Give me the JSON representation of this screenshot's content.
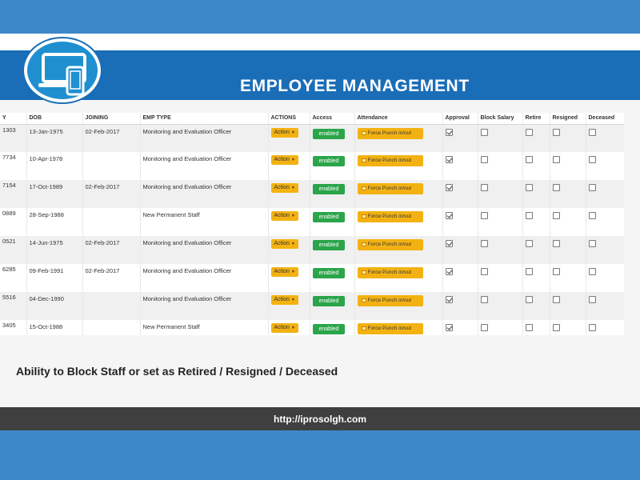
{
  "header": {
    "title": "EMPLOYEE MANAGEMENT"
  },
  "table": {
    "columns": [
      "Y",
      "DOB",
      "JOINING",
      "EMP TYPE",
      "ACTIONS",
      "Access",
      "Attendance",
      "Approval",
      "Block Salary",
      "Retire",
      "Resigned",
      "Deceased"
    ],
    "action_label": "Action",
    "access_label": "enabled",
    "punch_label": "Force Punch in/out",
    "rows": [
      {
        "id": "1303",
        "dob": "13-Jan-1975",
        "joining": "02-Feb-2017",
        "emp_type": "Monitoring and Evaluation Officer",
        "approval": true,
        "block_salary": false,
        "retire": false,
        "resigned": false,
        "deceased": false
      },
      {
        "id": "7734",
        "dob": "10-Apr-1978",
        "joining": "",
        "emp_type": "Monitoring and Evaluation Officer",
        "approval": true,
        "block_salary": false,
        "retire": false,
        "resigned": false,
        "deceased": false
      },
      {
        "id": "7154",
        "dob": "17-Oct-1989",
        "joining": "02-Feb-2017",
        "emp_type": "Monitoring and Evaluation Officer",
        "approval": true,
        "block_salary": false,
        "retire": false,
        "resigned": false,
        "deceased": false
      },
      {
        "id": "0889",
        "dob": "28-Sep-1988",
        "joining": "",
        "emp_type": "New Permanent Staff",
        "approval": true,
        "block_salary": false,
        "retire": false,
        "resigned": false,
        "deceased": false
      },
      {
        "id": "0521",
        "dob": "14-Jun-1975",
        "joining": "02-Feb-2017",
        "emp_type": "Monitoring and Evaluation Officer",
        "approval": true,
        "block_salary": false,
        "retire": false,
        "resigned": false,
        "deceased": false
      },
      {
        "id": "6285",
        "dob": "09-Feb-1991",
        "joining": "02-Feb-2017",
        "emp_type": "Monitoring and Evaluation Officer",
        "approval": true,
        "block_salary": false,
        "retire": false,
        "resigned": false,
        "deceased": false
      },
      {
        "id": "5516",
        "dob": "04-Dec-1990",
        "joining": "",
        "emp_type": "Monitoring and Evaluation Officer",
        "approval": true,
        "block_salary": false,
        "retire": false,
        "resigned": false,
        "deceased": false
      },
      {
        "id": "3405",
        "dob": "15-Oct-1988",
        "joining": "",
        "emp_type": "New Permanent Staff",
        "approval": true,
        "block_salary": false,
        "retire": false,
        "resigned": false,
        "deceased": false
      }
    ]
  },
  "caption": "Ability to Block Staff or set as Retired / Resigned / Deceased",
  "footer": {
    "url": "http://iprosolgh.com"
  },
  "icons": {
    "logo": "devices-icon",
    "punch": "clock-icon",
    "check": "checkbox-icon"
  },
  "colors": {
    "banner": "#1a6db7",
    "action_button": "#f3b212",
    "enabled_button": "#2aa54a",
    "footer": "#3f3f3f",
    "frame": "#3d88c9"
  }
}
